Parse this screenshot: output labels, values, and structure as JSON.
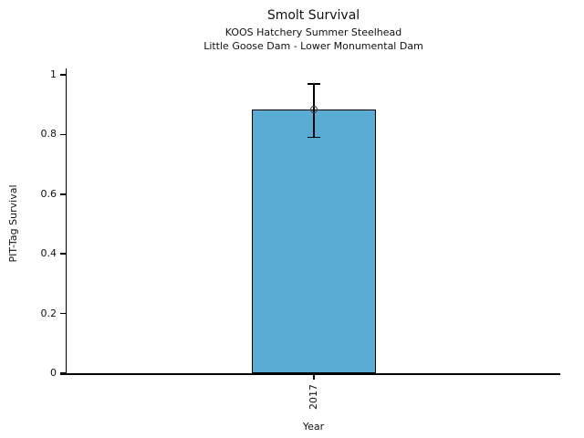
{
  "figure": {
    "title": "Smolt Survival",
    "subtitle1": "KOOS Hatchery Summer Steelhead",
    "subtitle2": "Little Goose Dam - Lower Monumental Dam"
  },
  "chart_data": {
    "type": "bar",
    "title": "Smolt Survival",
    "subtitle": [
      "KOOS Hatchery Summer Steelhead",
      "Little Goose Dam - Lower Monumental Dam"
    ],
    "categories": [
      "2017"
    ],
    "values": [
      0.885
    ],
    "error_bars": {
      "low": [
        0.79
      ],
      "high": [
        0.97
      ]
    },
    "xlabel": "Year",
    "ylabel": "PIT-Tag Survival",
    "ylim": [
      0,
      1
    ],
    "yticks": [
      0,
      0.2,
      0.4,
      0.6,
      0.8,
      1
    ],
    "ytick_labels": [
      "0",
      "0.2",
      "0.4",
      "0.6",
      "0.8",
      "1"
    ],
    "bar_fill_color": "#5BACD5",
    "bar_edge_color": "#000000",
    "errorbar_color": "#000000",
    "marker": "open-circle",
    "grid": false,
    "legend": "none",
    "spines": [
      "left",
      "bottom"
    ]
  }
}
